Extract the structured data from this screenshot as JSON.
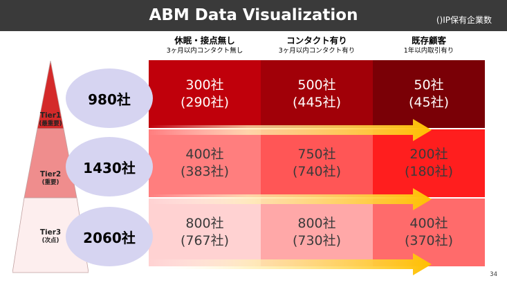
{
  "header": {
    "title": "ABM Data Visualization",
    "note": "()IP保有企業数"
  },
  "columns": [
    {
      "title": "休眠・接点無し",
      "sub": "3ヶ月以内コンタクト無し"
    },
    {
      "title": "コンタクト有り",
      "sub": "3ヶ月以内コンタクト有り"
    },
    {
      "title": "既存顧客",
      "sub": "1年以内取引有り"
    }
  ],
  "tiers": [
    {
      "name": "Tier1",
      "priority": "(最重要)",
      "total": "980社"
    },
    {
      "name": "Tier2",
      "priority": "(重要)",
      "total": "1430社"
    },
    {
      "name": "Tier3",
      "priority": "(次点)",
      "total": "2060社"
    }
  ],
  "cells": [
    [
      {
        "count": "300社",
        "ip": "(290社)",
        "color": "#c0000b"
      },
      {
        "count": "500社",
        "ip": "(445社)",
        "color": "#a10008"
      },
      {
        "count": "50社",
        "ip": "(45社)",
        "color": "#7a0006"
      }
    ],
    [
      {
        "count": "400社",
        "ip": "(383社)",
        "color": "#ff7e7e"
      },
      {
        "count": "750社",
        "ip": "(740社)",
        "color": "#ff5656"
      },
      {
        "count": "200社",
        "ip": "(180社)",
        "color": "#ff1e1e"
      }
    ],
    [
      {
        "count": "800社",
        "ip": "(767社)",
        "color": "#ffd2d2"
      },
      {
        "count": "800社",
        "ip": "(730社)",
        "color": "#ffa8a8"
      },
      {
        "count": "400社",
        "ip": "(370社)",
        "color": "#ff6b6b"
      }
    ]
  ],
  "colors": {
    "header_bg": "#3a3a3a",
    "oval": "#d6d4f1",
    "arrow_start": "#fff3c8",
    "arrow_end": "#ffc000",
    "pyramid_tier1": "#d42a2a",
    "pyramid_tier2": "#ef8d8d",
    "pyramid_tier3": "#fdeeee"
  },
  "chart_data": {
    "type": "table",
    "categories": [
      "休眠・接点無し",
      "コンタクト有り",
      "既存顧客"
    ],
    "series": [
      {
        "name": "Tier1",
        "values": [
          300,
          500,
          50
        ],
        "ip_values": [
          290,
          445,
          45
        ]
      },
      {
        "name": "Tier2",
        "values": [
          400,
          750,
          200
        ],
        "ip_values": [
          383,
          740,
          180
        ]
      },
      {
        "name": "Tier3",
        "values": [
          800,
          800,
          400
        ],
        "ip_values": [
          767,
          730,
          370
        ]
      }
    ]
  },
  "page_number": "34"
}
